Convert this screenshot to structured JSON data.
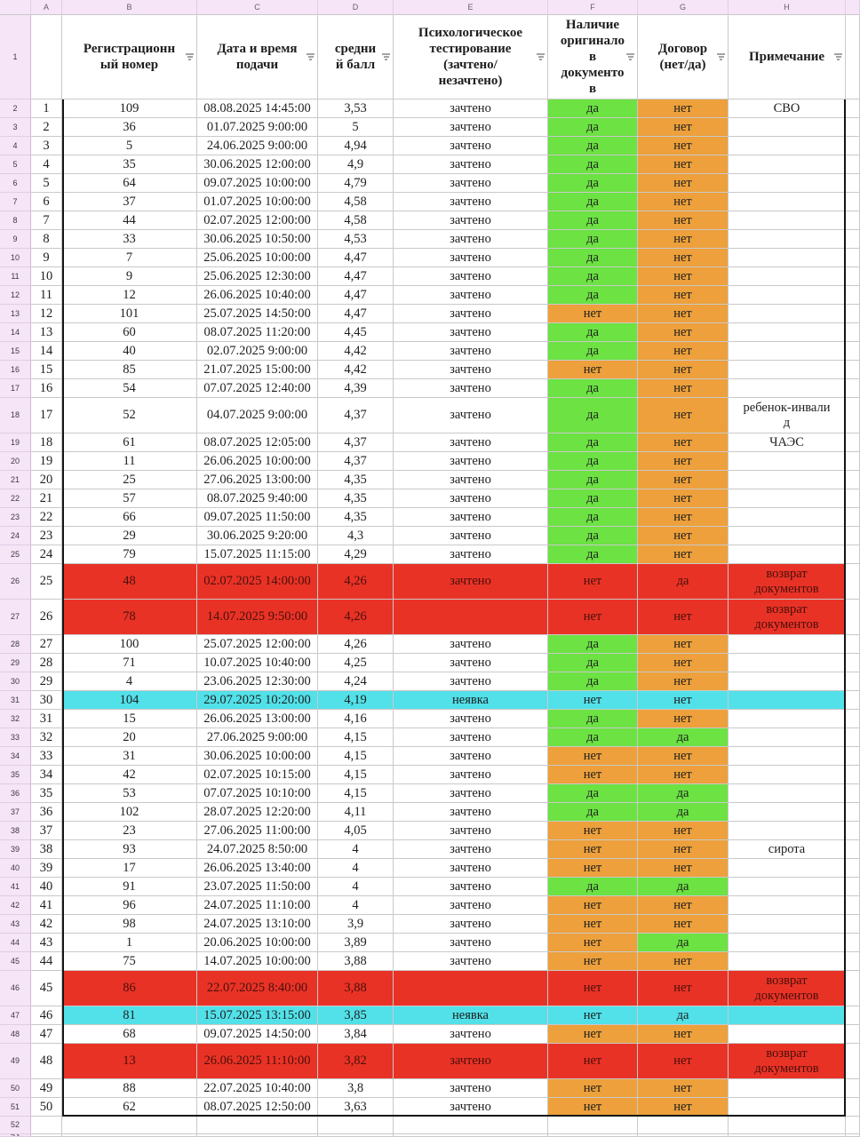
{
  "sheet": {
    "column_letters": [
      "A",
      "B",
      "C",
      "D",
      "E",
      "F",
      "G",
      "H"
    ],
    "header_row_number": "1",
    "trailing_row_numbers": [
      "52",
      "53"
    ],
    "headers": {
      "b": "Регистрационн\nый номер",
      "c": "Дата и время\nподачи",
      "d": "средни\nй балл",
      "e": "Психологическое\nтестирование\n(зачтено/\nнезачтено)",
      "f": "Наличие\nоригинало\nв\nдокументо\nв",
      "g": "Договор\n(нет/да)",
      "h": "Примечание"
    },
    "colors": {
      "green": "#6ce243",
      "orange": "#eda03b",
      "red": "#e93226",
      "cyan": "#52e1e9",
      "header_pink": "#f6e4f7"
    },
    "rows": [
      {
        "row": "2",
        "n": 1,
        "reg": "109",
        "dt": "08.08.2025 14:45:00",
        "score": "3,53",
        "test": "зачтено",
        "orig": "да",
        "contract": "нет",
        "note": "СВО",
        "hl": ""
      },
      {
        "row": "3",
        "n": 2,
        "reg": "36",
        "dt": "01.07.2025 9:00:00",
        "score": "5",
        "test": "зачтено",
        "orig": "да",
        "contract": "нет",
        "note": "",
        "hl": ""
      },
      {
        "row": "4",
        "n": 3,
        "reg": "5",
        "dt": "24.06.2025 9:00:00",
        "score": "4,94",
        "test": "зачтено",
        "orig": "да",
        "contract": "нет",
        "note": "",
        "hl": ""
      },
      {
        "row": "5",
        "n": 4,
        "reg": "35",
        "dt": "30.06.2025 12:00:00",
        "score": "4,9",
        "test": "зачтено",
        "orig": "да",
        "contract": "нет",
        "note": "",
        "hl": ""
      },
      {
        "row": "6",
        "n": 5,
        "reg": "64",
        "dt": "09.07.2025 10:00:00",
        "score": "4,79",
        "test": "зачтено",
        "orig": "да",
        "contract": "нет",
        "note": "",
        "hl": ""
      },
      {
        "row": "7",
        "n": 6,
        "reg": "37",
        "dt": "01.07.2025 10:00:00",
        "score": "4,58",
        "test": "зачтено",
        "orig": "да",
        "contract": "нет",
        "note": "",
        "hl": ""
      },
      {
        "row": "8",
        "n": 7,
        "reg": "44",
        "dt": "02.07.2025 12:00:00",
        "score": "4,58",
        "test": "зачтено",
        "orig": "да",
        "contract": "нет",
        "note": "",
        "hl": ""
      },
      {
        "row": "9",
        "n": 8,
        "reg": "33",
        "dt": "30.06.2025 10:50:00",
        "score": "4,53",
        "test": "зачтено",
        "orig": "да",
        "contract": "нет",
        "note": "",
        "hl": ""
      },
      {
        "row": "10",
        "n": 9,
        "reg": "7",
        "dt": "25.06.2025 10:00:00",
        "score": "4,47",
        "test": "зачтено",
        "orig": "да",
        "contract": "нет",
        "note": "",
        "hl": ""
      },
      {
        "row": "11",
        "n": 10,
        "reg": "9",
        "dt": "25.06.2025 12:30:00",
        "score": "4,47",
        "test": "зачтено",
        "orig": "да",
        "contract": "нет",
        "note": "",
        "hl": ""
      },
      {
        "row": "12",
        "n": 11,
        "reg": "12",
        "dt": "26.06.2025 10:40:00",
        "score": "4,47",
        "test": "зачтено",
        "orig": "да",
        "contract": "нет",
        "note": "",
        "hl": ""
      },
      {
        "row": "13",
        "n": 12,
        "reg": "101",
        "dt": "25.07.2025 14:50:00",
        "score": "4,47",
        "test": "зачтено",
        "orig": "нет",
        "contract": "нет",
        "note": "",
        "hl": ""
      },
      {
        "row": "14",
        "n": 13,
        "reg": "60",
        "dt": "08.07.2025 11:20:00",
        "score": "4,45",
        "test": "зачтено",
        "orig": "да",
        "contract": "нет",
        "note": "",
        "hl": ""
      },
      {
        "row": "15",
        "n": 14,
        "reg": "40",
        "dt": "02.07.2025 9:00:00",
        "score": "4,42",
        "test": "зачтено",
        "orig": "да",
        "contract": "нет",
        "note": "",
        "hl": ""
      },
      {
        "row": "16",
        "n": 15,
        "reg": "85",
        "dt": "21.07.2025 15:00:00",
        "score": "4,42",
        "test": "зачтено",
        "orig": "нет",
        "contract": "нет",
        "note": "",
        "hl": ""
      },
      {
        "row": "17",
        "n": 16,
        "reg": "54",
        "dt": "07.07.2025 12:40:00",
        "score": "4,39",
        "test": "зачтено",
        "orig": "да",
        "contract": "нет",
        "note": "",
        "hl": ""
      },
      {
        "row": "18",
        "n": 17,
        "reg": "52",
        "dt": "04.07.2025 9:00:00",
        "score": "4,37",
        "test": "зачтено",
        "orig": "да",
        "contract": "нет",
        "note": "ребенок-инвали\nд",
        "hl": ""
      },
      {
        "row": "19",
        "n": 18,
        "reg": "61",
        "dt": "08.07.2025 12:05:00",
        "score": "4,37",
        "test": "зачтено",
        "orig": "да",
        "contract": "нет",
        "note": "ЧАЭС",
        "hl": ""
      },
      {
        "row": "20",
        "n": 19,
        "reg": "11",
        "dt": "26.06.2025 10:00:00",
        "score": "4,37",
        "test": "зачтено",
        "orig": "да",
        "contract": "нет",
        "note": "",
        "hl": ""
      },
      {
        "row": "21",
        "n": 20,
        "reg": "25",
        "dt": "27.06.2025 13:00:00",
        "score": "4,35",
        "test": "зачтено",
        "orig": "да",
        "contract": "нет",
        "note": "",
        "hl": ""
      },
      {
        "row": "22",
        "n": 21,
        "reg": "57",
        "dt": "08.07.2025 9:40:00",
        "score": "4,35",
        "test": "зачтено",
        "orig": "да",
        "contract": "нет",
        "note": "",
        "hl": ""
      },
      {
        "row": "23",
        "n": 22,
        "reg": "66",
        "dt": "09.07.2025 11:50:00",
        "score": "4,35",
        "test": "зачтено",
        "orig": "да",
        "contract": "нет",
        "note": "",
        "hl": ""
      },
      {
        "row": "24",
        "n": 23,
        "reg": "29",
        "dt": "30.06.2025 9:20:00",
        "score": "4,3",
        "test": "зачтено",
        "orig": "да",
        "contract": "нет",
        "note": "",
        "hl": ""
      },
      {
        "row": "25",
        "n": 24,
        "reg": "79",
        "dt": "15.07.2025 11:15:00",
        "score": "4,29",
        "test": "зачтено",
        "orig": "да",
        "contract": "нет",
        "note": "",
        "hl": ""
      },
      {
        "row": "26",
        "n": 25,
        "reg": "48",
        "dt": "02.07.2025 14:00:00",
        "score": "4,26",
        "test": "зачтено",
        "orig": "нет",
        "contract": "да",
        "note": "возврат\nдокументов",
        "hl": "red"
      },
      {
        "row": "27",
        "n": 26,
        "reg": "78",
        "dt": "14.07.2025 9:50:00",
        "score": "4,26",
        "test": "",
        "orig": "нет",
        "contract": "нет",
        "note": "возврат\nдокументов",
        "hl": "red"
      },
      {
        "row": "28",
        "n": 27,
        "reg": "100",
        "dt": "25.07.2025 12:00:00",
        "score": "4,26",
        "test": "зачтено",
        "orig": "да",
        "contract": "нет",
        "note": "",
        "hl": ""
      },
      {
        "row": "29",
        "n": 28,
        "reg": "71",
        "dt": "10.07.2025 10:40:00",
        "score": "4,25",
        "test": "зачтено",
        "orig": "да",
        "contract": "нет",
        "note": "",
        "hl": ""
      },
      {
        "row": "30",
        "n": 29,
        "reg": "4",
        "dt": "23.06.2025 12:30:00",
        "score": "4,24",
        "test": "зачтено",
        "orig": "да",
        "contract": "нет",
        "note": "",
        "hl": ""
      },
      {
        "row": "31",
        "n": 30,
        "reg": "104",
        "dt": "29.07.2025 10:20:00",
        "score": "4,19",
        "test": "неявка",
        "orig": "нет",
        "contract": "нет",
        "note": "",
        "hl": "cyan"
      },
      {
        "row": "32",
        "n": 31,
        "reg": "15",
        "dt": "26.06.2025 13:00:00",
        "score": "4,16",
        "test": "зачтено",
        "orig": "да",
        "contract": "нет",
        "note": "",
        "hl": ""
      },
      {
        "row": "33",
        "n": 32,
        "reg": "20",
        "dt": "27.06.2025 9:00:00",
        "score": "4,15",
        "test": "зачтено",
        "orig": "да",
        "contract": "да",
        "note": "",
        "hl": ""
      },
      {
        "row": "34",
        "n": 33,
        "reg": "31",
        "dt": "30.06.2025 10:00:00",
        "score": "4,15",
        "test": "зачтено",
        "orig": "нет",
        "contract": "нет",
        "note": "",
        "hl": ""
      },
      {
        "row": "35",
        "n": 34,
        "reg": "42",
        "dt": "02.07.2025 10:15:00",
        "score": "4,15",
        "test": "зачтено",
        "orig": "нет",
        "contract": "нет",
        "note": "",
        "hl": ""
      },
      {
        "row": "36",
        "n": 35,
        "reg": "53",
        "dt": "07.07.2025 10:10:00",
        "score": "4,15",
        "test": "зачтено",
        "orig": "да",
        "contract": "да",
        "note": "",
        "hl": ""
      },
      {
        "row": "37",
        "n": 36,
        "reg": "102",
        "dt": "28.07.2025 12:20:00",
        "score": "4,11",
        "test": "зачтено",
        "orig": "да",
        "contract": "да",
        "note": "",
        "hl": ""
      },
      {
        "row": "38",
        "n": 37,
        "reg": "23",
        "dt": "27.06.2025 11:00:00",
        "score": "4,05",
        "test": "зачтено",
        "orig": "нет",
        "contract": "нет",
        "note": "",
        "hl": ""
      },
      {
        "row": "39",
        "n": 38,
        "reg": "93",
        "dt": "24.07.2025 8:50:00",
        "score": "4",
        "test": "зачтено",
        "orig": "нет",
        "contract": "нет",
        "note": "сирота",
        "hl": ""
      },
      {
        "row": "40",
        "n": 39,
        "reg": "17",
        "dt": "26.06.2025 13:40:00",
        "score": "4",
        "test": "зачтено",
        "orig": "нет",
        "contract": "нет",
        "note": "",
        "hl": ""
      },
      {
        "row": "41",
        "n": 40,
        "reg": "91",
        "dt": "23.07.2025 11:50:00",
        "score": "4",
        "test": "зачтено",
        "orig": "да",
        "contract": "да",
        "note": "",
        "hl": ""
      },
      {
        "row": "42",
        "n": 41,
        "reg": "96",
        "dt": "24.07.2025 11:10:00",
        "score": "4",
        "test": "зачтено",
        "orig": "нет",
        "contract": "нет",
        "note": "",
        "hl": ""
      },
      {
        "row": "43",
        "n": 42,
        "reg": "98",
        "dt": "24.07.2025 13:10:00",
        "score": "3,9",
        "test": "зачтено",
        "orig": "нет",
        "contract": "нет",
        "note": "",
        "hl": ""
      },
      {
        "row": "44",
        "n": 43,
        "reg": "1",
        "dt": "20.06.2025 10:00:00",
        "score": "3,89",
        "test": "зачтено",
        "orig": "нет",
        "contract": "да",
        "note": "",
        "hl": ""
      },
      {
        "row": "45",
        "n": 44,
        "reg": "75",
        "dt": "14.07.2025 10:00:00",
        "score": "3,88",
        "test": "зачтено",
        "orig": "нет",
        "contract": "нет",
        "note": "",
        "hl": ""
      },
      {
        "row": "46",
        "n": 45,
        "reg": "86",
        "dt": "22.07.2025 8:40:00",
        "score": "3,88",
        "test": "",
        "orig": "нет",
        "contract": "нет",
        "note": "возврат\nдокументов",
        "hl": "red"
      },
      {
        "row": "47",
        "n": 46,
        "reg": "81",
        "dt": "15.07.2025 13:15:00",
        "score": "3,85",
        "test": "неявка",
        "orig": "нет",
        "contract": "да",
        "note": "",
        "hl": "cyan"
      },
      {
        "row": "48",
        "n": 47,
        "reg": "68",
        "dt": "09.07.2025 14:50:00",
        "score": "3,84",
        "test": "зачтено",
        "orig": "нет",
        "contract": "нет",
        "note": "",
        "hl": ""
      },
      {
        "row": "49",
        "n": 48,
        "reg": "13",
        "dt": "26.06.2025 11:10:00",
        "score": "3,82",
        "test": "зачтено",
        "orig": "нет",
        "contract": "нет",
        "note": "возврат\nдокументов",
        "hl": "red"
      },
      {
        "row": "50",
        "n": 49,
        "reg": "88",
        "dt": "22.07.2025 10:40:00",
        "score": "3,8",
        "test": "зачтено",
        "orig": "нет",
        "contract": "нет",
        "note": "",
        "hl": ""
      },
      {
        "row": "51",
        "n": 50,
        "reg": "62",
        "dt": "08.07.2025 12:50:00",
        "score": "3,63",
        "test": "зачтено",
        "orig": "нет",
        "contract": "нет",
        "note": "",
        "hl": ""
      }
    ]
  }
}
